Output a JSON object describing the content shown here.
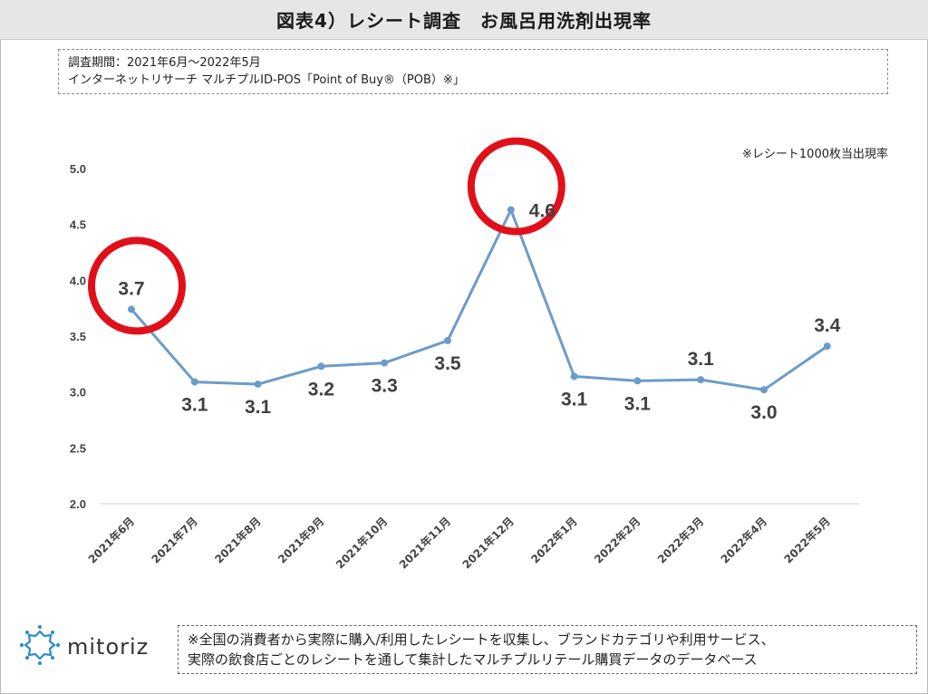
{
  "header": {
    "title": "図表4）レシート調査　お風呂用洗剤出現率"
  },
  "info": {
    "line1": "調査期間：2021年6月～2022年5月",
    "line2": " インターネットリサーチ マルチプルID-POS「Point of Buy®（POB）※」"
  },
  "chart_note": "※レシート1000枚当出現率",
  "chart_data": {
    "type": "line",
    "categories": [
      "2021年6月",
      "2021年7月",
      "2021年8月",
      "2021年9月",
      "2021年10月",
      "2021年11月",
      "2021年12月",
      "2022年1月",
      "2022年2月",
      "2022年3月",
      "2022年4月",
      "2022年5月"
    ],
    "values": [
      3.74,
      3.09,
      3.07,
      3.23,
      3.26,
      3.46,
      4.63,
      3.14,
      3.1,
      3.11,
      3.02,
      3.41
    ],
    "data_labels": [
      "3.7",
      "3.1",
      "3.1",
      "3.2",
      "3.3",
      "3.5",
      "4.6",
      "3.1",
      "3.1",
      "3.1",
      "3.0",
      "3.4"
    ],
    "yticks": [
      "5.0",
      "4.5",
      "4.0",
      "3.5",
      "3.0",
      "2.5",
      "2.0"
    ],
    "ylim": [
      2.0,
      5.0
    ],
    "highlighted": [
      "2021年6月",
      "2021年12月"
    ],
    "line_color": "#6b9cc9",
    "highlight_color": "#e0101a",
    "grid": false,
    "legend": "none"
  },
  "footer": {
    "logo_text": "mitoriz",
    "line1": "※全国の消費者から実際に購入/利用したレシートを収集し、ブランドカテゴリや利用サービス、",
    "line2": "実際の飲食店ごとのレシートを通して集計したマルチプルリテール購買データのデータベース"
  },
  "colors": {
    "title_bg": "#e6e6e6",
    "logo_blue": "#2a8cc8"
  }
}
